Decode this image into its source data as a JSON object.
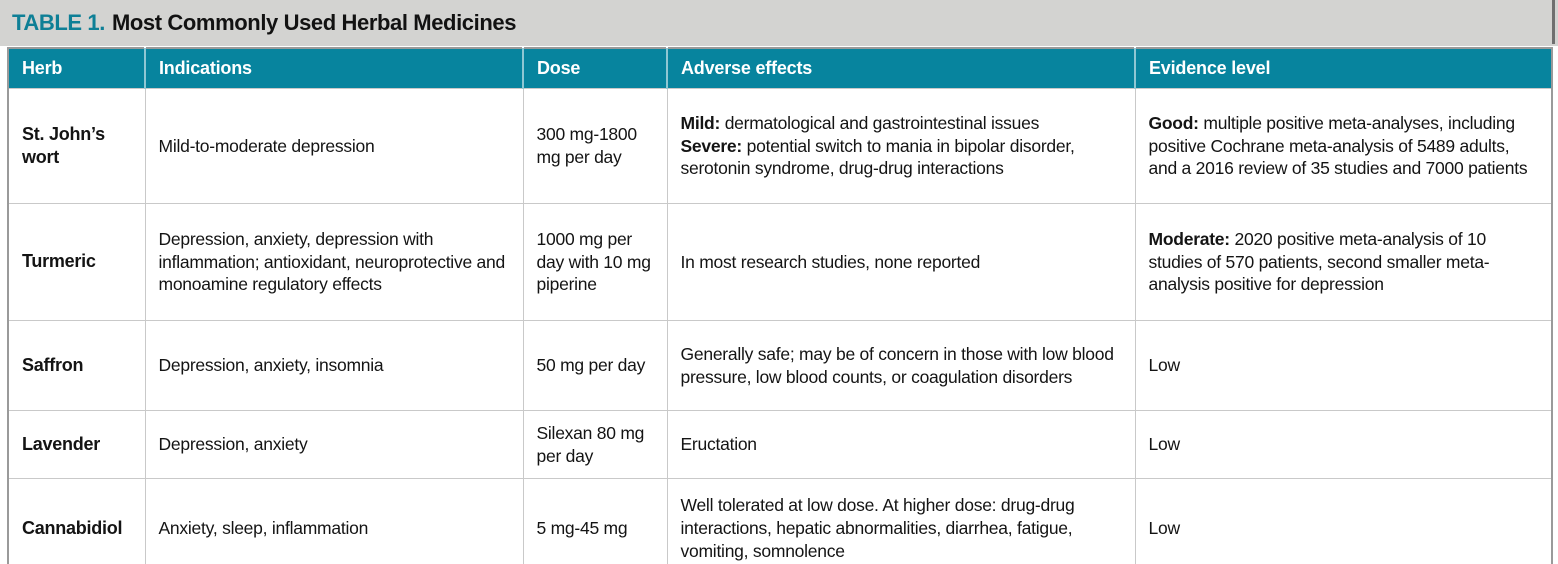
{
  "title": {
    "label": "TABLE 1.",
    "text": "Most Commonly Used Herbal Medicines"
  },
  "colors": {
    "header_teal": "#07849e",
    "title_teal": "#0e7f96",
    "title_band_gray": "#d3d3d1",
    "cell_border_gray": "#c9c9c9",
    "outer_border_gray": "#9a9a9a"
  },
  "table": {
    "columns": [
      "Herb",
      "Indications",
      "Dose",
      "Adverse effects",
      "Evidence level"
    ],
    "rows": [
      {
        "herb": "St. John’s wort",
        "indications": "Mild-to-moderate depression",
        "dose": "300 mg-1800 mg per day",
        "adverse": [
          [
            {
              "b": "Mild:"
            },
            {
              "t": " dermatological and gastrointestinal issues"
            }
          ],
          [
            {
              "b": "Severe:"
            },
            {
              "t": " potential switch to mania in bipolar disorder, serotonin syndrome, drug-drug interactions"
            }
          ]
        ],
        "evidence": [
          [
            {
              "b": "Good:"
            },
            {
              "t": " multiple positive meta-analyses, including positive Cochrane meta-analysis of 5489 adults, and a 2016 review of 35 studies and 7000 patients"
            }
          ]
        ]
      },
      {
        "herb": "Turmeric",
        "indications": "Depression, anxiety, depression with inflammation; antioxidant, neuroprotective and monoamine regulatory effects",
        "dose": "1000 mg per day with 10 mg piperine",
        "adverse": [
          [
            {
              "t": "In most research studies, none reported"
            }
          ]
        ],
        "evidence": [
          [
            {
              "b": "Moderate:"
            },
            {
              "t": " 2020 positive meta-analysis of 10 studies of 570 patients, second smaller meta-analysis positive for depression"
            }
          ]
        ]
      },
      {
        "herb": "Saffron",
        "indications": "Depression, anxiety, insomnia",
        "dose": "50 mg per day",
        "adverse": [
          [
            {
              "t": "Generally safe; may be of concern in those with low blood pressure, low blood counts, or coagulation disorders"
            }
          ]
        ],
        "evidence": [
          [
            {
              "t": "Low"
            }
          ]
        ]
      },
      {
        "herb": "Lavender",
        "indications": "Depression, anxiety",
        "dose": "Silexan 80 mg per day",
        "adverse": [
          [
            {
              "t": "Eructation"
            }
          ]
        ],
        "evidence": [
          [
            {
              "t": "Low"
            }
          ]
        ]
      },
      {
        "herb": "Cannabidiol",
        "indications": "Anxiety, sleep, inflammation",
        "dose": "5 mg-45 mg",
        "adverse": [
          [
            {
              "t": "Well tolerated at low dose. At higher dose: drug-drug interactions, hepatic abnormalities, diarrhea, fatigue, vomiting, somnolence"
            }
          ]
        ],
        "evidence": [
          [
            {
              "t": "Low"
            }
          ]
        ]
      }
    ]
  }
}
